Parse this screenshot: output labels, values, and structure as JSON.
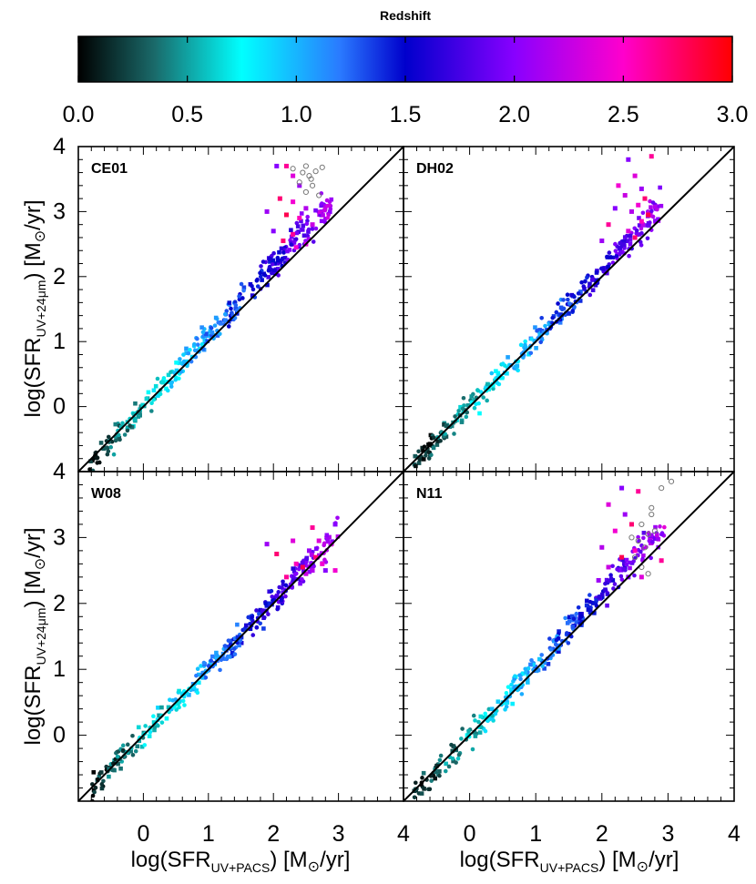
{
  "colorbar": {
    "title": "Redshift",
    "range": [
      0.0,
      3.0
    ],
    "ticks": [
      "0.0",
      "0.5",
      "1.0",
      "1.5",
      "2.0",
      "2.5",
      "3.0"
    ],
    "stops": [
      {
        "z": 0.0,
        "color": "#000000"
      },
      {
        "z": 0.35,
        "color": "#1a6a6a"
      },
      {
        "z": 0.75,
        "color": "#00ffff"
      },
      {
        "z": 1.2,
        "color": "#2a7aff"
      },
      {
        "z": 1.5,
        "color": "#0000cc"
      },
      {
        "z": 2.0,
        "color": "#8800ff"
      },
      {
        "z": 2.5,
        "color": "#ff00cc"
      },
      {
        "z": 3.0,
        "color": "#ff0000"
      }
    ]
  },
  "axes": {
    "xlim": [
      -1.0,
      4.0
    ],
    "ylim": [
      -1.0,
      4.0
    ],
    "x_ticks": [
      "0",
      "1",
      "2",
      "3",
      "4"
    ],
    "y_ticks": [
      "0",
      "1",
      "2",
      "3",
      "4"
    ],
    "xlabel": {
      "pre": "log(SFR",
      "sub": "UV+PACS",
      "post": ") [M",
      "sun": "⊙",
      "unit": "/yr]"
    },
    "ylabel": {
      "pre": "log(SFR",
      "sub": "UV+24μm",
      "post": ") [M",
      "sun": "⊙",
      "unit": "/yr]"
    }
  },
  "chart_data": [
    {
      "type": "scatter",
      "title": "CE01",
      "one_to_one_line": true,
      "sample": {
        "n": 330,
        "seed": 11,
        "xmin": -0.85,
        "xmax": 2.9,
        "slope": 1.08,
        "scatter": 0.17
      },
      "open_points": [
        [
          2.3,
          3.66
        ],
        [
          2.45,
          3.6
        ],
        [
          2.5,
          3.7
        ],
        [
          2.55,
          3.55
        ],
        [
          2.4,
          3.45
        ],
        [
          2.6,
          3.4
        ],
        [
          2.5,
          3.3
        ],
        [
          2.65,
          3.62
        ],
        [
          2.75,
          3.68
        ],
        [
          2.7,
          3.25
        ],
        [
          2.58,
          3.5
        ]
      ],
      "high_z_points": [
        [
          2.05,
          3.7
        ],
        [
          2.2,
          3.7
        ],
        [
          2.3,
          3.55
        ],
        [
          2.4,
          3.4
        ],
        [
          2.1,
          3.2
        ],
        [
          2.3,
          3.15
        ],
        [
          2.5,
          3.05
        ],
        [
          2.2,
          2.95
        ],
        [
          2.4,
          2.9
        ],
        [
          2.6,
          2.8
        ],
        [
          2.0,
          2.7
        ],
        [
          2.3,
          2.65
        ],
        [
          2.5,
          2.5
        ],
        [
          1.9,
          3.0
        ],
        [
          2.15,
          2.55
        ],
        [
          2.35,
          2.45
        ]
      ]
    },
    {
      "type": "scatter",
      "title": "DH02",
      "one_to_one_line": true,
      "sample": {
        "n": 330,
        "seed": 23,
        "xmin": -0.85,
        "xmax": 2.9,
        "slope": 1.05,
        "scatter": 0.16
      },
      "open_points": [],
      "high_z_points": [
        [
          2.4,
          3.8
        ],
        [
          2.75,
          3.85
        ],
        [
          2.5,
          3.55
        ],
        [
          2.6,
          3.35
        ],
        [
          2.65,
          3.2
        ],
        [
          2.55,
          3.1
        ],
        [
          2.45,
          3.0
        ],
        [
          2.7,
          2.95
        ],
        [
          2.6,
          2.85
        ],
        [
          2.35,
          3.25
        ],
        [
          2.2,
          3.05
        ],
        [
          2.1,
          2.8
        ],
        [
          2.4,
          2.7
        ],
        [
          2.0,
          2.55
        ],
        [
          2.5,
          2.6
        ],
        [
          2.25,
          3.4
        ]
      ]
    },
    {
      "type": "scatter",
      "title": "W08",
      "one_to_one_line": true,
      "sample": {
        "n": 330,
        "seed": 37,
        "xmin": -0.85,
        "xmax": 3.0,
        "slope": 1.0,
        "scatter": 0.16
      },
      "open_points": [],
      "high_z_points": [
        [
          2.95,
          3.2
        ],
        [
          2.6,
          3.15
        ],
        [
          2.7,
          2.95
        ],
        [
          2.55,
          2.8
        ],
        [
          2.65,
          2.7
        ],
        [
          2.75,
          2.6
        ],
        [
          2.6,
          2.5
        ],
        [
          2.45,
          2.55
        ],
        [
          2.35,
          2.6
        ],
        [
          2.5,
          2.45
        ],
        [
          2.8,
          2.5
        ],
        [
          2.2,
          2.4
        ],
        [
          2.3,
          2.95
        ],
        [
          1.9,
          2.9
        ],
        [
          2.05,
          2.75
        ],
        [
          2.95,
          2.5
        ]
      ]
    },
    {
      "type": "scatter",
      "title": "N11",
      "one_to_one_line": true,
      "sample": {
        "n": 330,
        "seed": 53,
        "xmin": -0.85,
        "xmax": 2.95,
        "slope": 1.06,
        "scatter": 0.17
      },
      "open_points": [
        [
          2.75,
          3.35
        ],
        [
          2.6,
          3.2
        ],
        [
          2.7,
          3.05
        ],
        [
          2.55,
          2.95
        ],
        [
          2.65,
          2.85
        ],
        [
          2.5,
          2.7
        ],
        [
          2.6,
          2.55
        ],
        [
          2.7,
          2.45
        ],
        [
          2.8,
          3.1
        ],
        [
          2.45,
          3.0
        ],
        [
          2.9,
          3.75
        ],
        [
          3.05,
          3.85
        ],
        [
          2.75,
          3.45
        ]
      ],
      "high_z_points": [
        [
          2.3,
          3.75
        ],
        [
          2.55,
          3.7
        ],
        [
          2.1,
          3.5
        ],
        [
          2.35,
          3.35
        ],
        [
          2.45,
          3.2
        ],
        [
          2.2,
          3.1
        ],
        [
          2.0,
          2.85
        ],
        [
          2.3,
          2.7
        ],
        [
          2.5,
          2.8
        ],
        [
          2.1,
          2.55
        ],
        [
          2.4,
          2.4
        ],
        [
          2.9,
          2.65
        ],
        [
          2.6,
          2.4
        ],
        [
          1.95,
          2.35
        ]
      ]
    }
  ]
}
